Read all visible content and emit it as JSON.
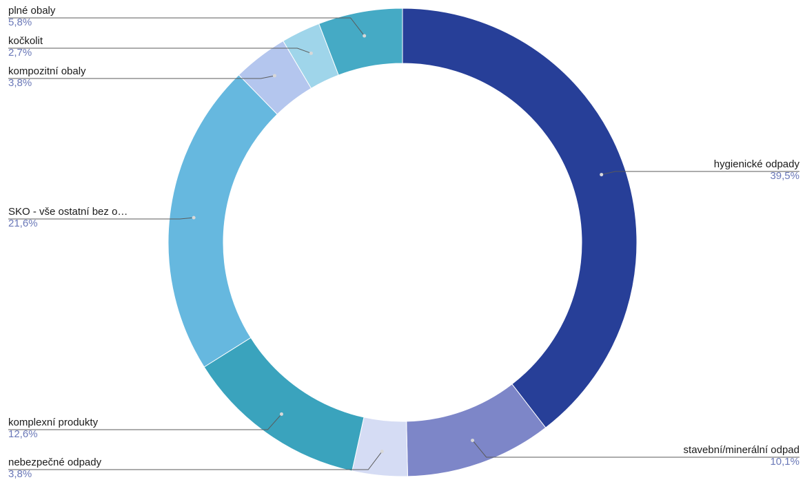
{
  "chart_data": {
    "type": "pie",
    "donut": true,
    "start_angle_deg": 0,
    "direction": "clockwise",
    "legend": "none (outside labels with leader lines)",
    "slices": [
      {
        "label": "hygienické odpady",
        "value": 39.5,
        "value_label": "39,5%",
        "color": "#273f98",
        "side": "right"
      },
      {
        "label": "stavební/minerální odpad",
        "value": 10.1,
        "value_label": "10,1%",
        "color": "#7d86c8",
        "side": "right"
      },
      {
        "label": "nebezpečné odpady",
        "value": 3.8,
        "value_label": "3,8%",
        "color": "#d5dcf4",
        "side": "left"
      },
      {
        "label": "komplexní produkty",
        "value": 12.6,
        "value_label": "12,6%",
        "color": "#3aa3bd",
        "side": "left"
      },
      {
        "label": "SKO - vše ostatní bez o…",
        "value": 21.6,
        "value_label": "21,6%",
        "color": "#66b8df",
        "side": "left"
      },
      {
        "label": "kompozitní obaly",
        "value": 3.8,
        "value_label": "3,8%",
        "color": "#b4c6ee",
        "side": "left"
      },
      {
        "label": "kočkolit",
        "value": 2.7,
        "value_label": "2,7%",
        "color": "#9fd5ea",
        "side": "left"
      },
      {
        "label": "plné obaly",
        "value": 5.8,
        "value_label": "5,8%",
        "color": "#45aac5",
        "side": "left"
      }
    ]
  }
}
